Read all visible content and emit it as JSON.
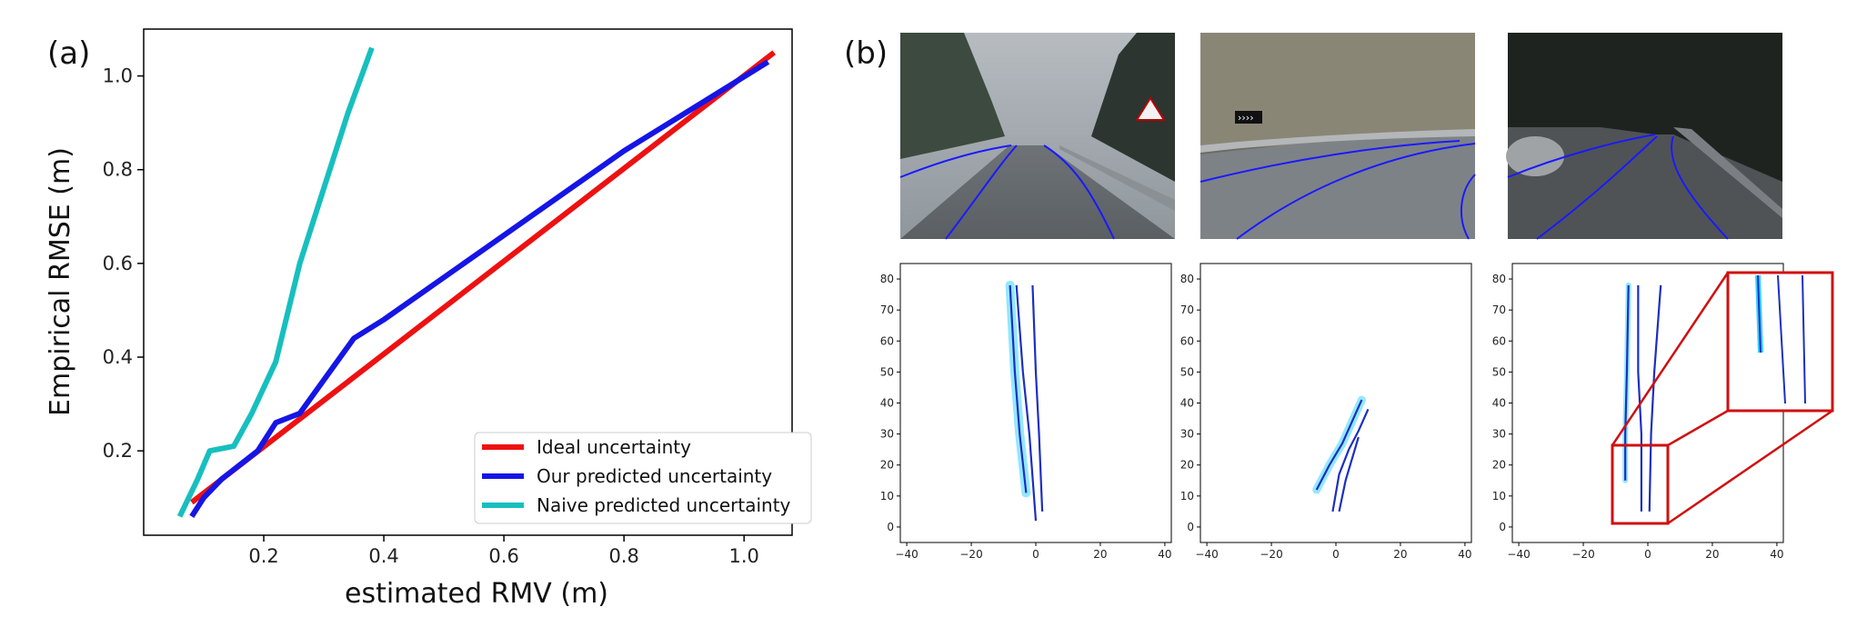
{
  "panel_a": {
    "label": "(a)"
  },
  "panel_b": {
    "label": "(b)"
  },
  "chart_data": [
    {
      "type": "line",
      "title": "",
      "xlabel": "estimated RMV (m)",
      "ylabel": "Empirical RMSE (m)",
      "xlim": [
        0.0,
        1.08
      ],
      "ylim": [
        0.02,
        1.1
      ],
      "xticks": [
        "0.2",
        "0.4",
        "0.6",
        "0.8",
        "1.0"
      ],
      "yticks": [
        "0.2",
        "0.4",
        "0.6",
        "0.8",
        "1.0"
      ],
      "legend_position": "bottom-right",
      "grid": false,
      "series": [
        {
          "name": "Ideal uncertainty",
          "color": "#ee1111",
          "x": [
            0.08,
            1.05
          ],
          "y": [
            0.09,
            1.05
          ]
        },
        {
          "name": "Our predicted uncertainty",
          "color": "#1515e6",
          "x": [
            0.08,
            0.1,
            0.13,
            0.17,
            0.19,
            0.22,
            0.26,
            0.35,
            0.4,
            0.6,
            0.8,
            1.04
          ],
          "y": [
            0.06,
            0.1,
            0.14,
            0.18,
            0.2,
            0.26,
            0.28,
            0.44,
            0.48,
            0.66,
            0.84,
            1.03
          ]
        },
        {
          "name": "Naive predicted uncertainty",
          "color": "#17bfbf",
          "x": [
            0.06,
            0.09,
            0.11,
            0.15,
            0.18,
            0.22,
            0.26,
            0.3,
            0.34,
            0.38
          ],
          "y": [
            0.06,
            0.14,
            0.2,
            0.21,
            0.28,
            0.39,
            0.6,
            0.76,
            0.92,
            1.06
          ]
        }
      ]
    },
    {
      "type": "line",
      "xticks": [
        "−40",
        "−20",
        "0",
        "20",
        "40"
      ],
      "yticks": [
        "0",
        "10",
        "20",
        "30",
        "40",
        "50",
        "60",
        "70",
        "80"
      ],
      "xlim": [
        -42,
        42
      ],
      "ylim": [
        -5,
        85
      ],
      "series": [
        {
          "name": "",
          "color": "#1c2fbf",
          "x": [
            -8,
            -6.5,
            -5,
            -3
          ],
          "y": [
            78,
            50,
            30,
            11
          ]
        },
        {
          "name": "",
          "color": "#1c2fbf",
          "x": [
            -6,
            -4,
            -2,
            0
          ],
          "y": [
            78,
            50,
            30,
            2
          ]
        },
        {
          "name": "",
          "color": "#1c2fbf",
          "x": [
            -1,
            0,
            1,
            2
          ],
          "y": [
            78,
            50,
            30,
            5
          ]
        }
      ]
    },
    {
      "type": "line",
      "xticks": [
        "−40",
        "−20",
        "0",
        "20",
        "40"
      ],
      "yticks": [
        "0",
        "10",
        "20",
        "30",
        "40",
        "50",
        "60",
        "70",
        "80"
      ],
      "xlim": [
        -42,
        42
      ],
      "ylim": [
        -5,
        85
      ],
      "series": [
        {
          "name": "",
          "color": "#1c2fbf",
          "x": [
            -6,
            -2,
            2,
            5,
            8
          ],
          "y": [
            12,
            20,
            27,
            34,
            41
          ]
        },
        {
          "name": "",
          "color": "#1c2fbf",
          "x": [
            -1,
            1,
            4,
            7,
            10
          ],
          "y": [
            5,
            17,
            25,
            31,
            38
          ]
        },
        {
          "name": "",
          "color": "#1c2fbf",
          "x": [
            1,
            3,
            5,
            7
          ],
          "y": [
            5,
            15,
            22,
            29
          ]
        }
      ]
    },
    {
      "type": "line",
      "xticks": [
        "−40",
        "−20",
        "0",
        "20",
        "40"
      ],
      "yticks": [
        "0",
        "10",
        "20",
        "30",
        "40",
        "50",
        "60",
        "70",
        "80"
      ],
      "xlim": [
        -42,
        42
      ],
      "ylim": [
        -5,
        85
      ],
      "series": [
        {
          "name": "",
          "color": "#1c2fbf",
          "x": [
            -6,
            -6.5,
            -7,
            -7
          ],
          "y": [
            78,
            50,
            30,
            15
          ]
        },
        {
          "name": "",
          "color": "#1c2fbf",
          "x": [
            -3,
            -3,
            -2,
            -2
          ],
          "y": [
            78,
            50,
            30,
            5
          ]
        },
        {
          "name": "",
          "color": "#1c2fbf",
          "x": [
            4,
            2,
            1,
            0.5
          ],
          "y": [
            78,
            50,
            30,
            5
          ]
        }
      ]
    }
  ]
}
